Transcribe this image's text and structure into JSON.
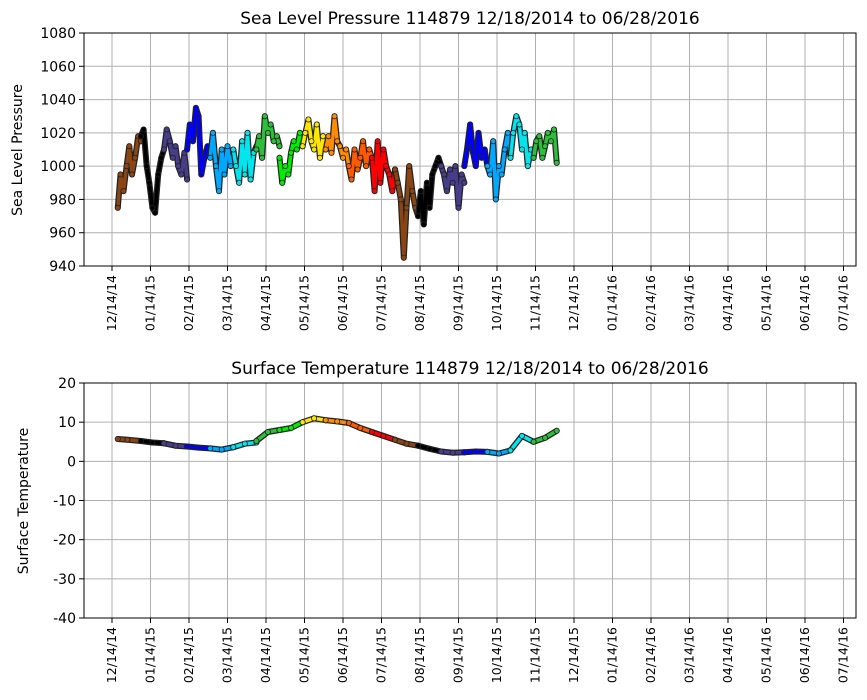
{
  "chart_data": [
    {
      "type": "scatter",
      "title": "Sea Level Pressure 114879  12/18/2014 to 06/28/2016",
      "xlabel": "",
      "ylabel": "Sea Level Pressure",
      "ylim": [
        940,
        1080
      ],
      "yticks": [
        940,
        960,
        980,
        1000,
        1020,
        1040,
        1060,
        1080
      ],
      "grid": true,
      "x_tick_labels": [
        "12/14/14",
        "01/14/15",
        "02/14/15",
        "03/14/15",
        "04/14/15",
        "05/14/15",
        "06/14/15",
        "07/14/15",
        "08/14/15",
        "09/14/15",
        "10/14/15",
        "11/14/15",
        "12/14/15",
        "01/14/16",
        "02/14/16",
        "03/14/16",
        "04/14/16",
        "05/14/16",
        "06/14/16",
        "07/14/16"
      ],
      "x_unit": "months since 12/14/14",
      "segments": [
        {
          "color": "#8B4513",
          "x": [
            0.15,
            0.22,
            0.3,
            0.38,
            0.45,
            0.52,
            0.6,
            0.68,
            0.75
          ],
          "y": [
            975,
            995,
            985,
            1000,
            1012,
            995,
            1005,
            1018,
            1015
          ]
        },
        {
          "color": "#000000",
          "x": [
            0.75,
            0.82,
            0.9,
            0.97,
            1.05,
            1.12,
            1.2,
            1.28,
            1.35
          ],
          "y": [
            1018,
            1022,
            1000,
            990,
            975,
            972,
            995,
            1005,
            1010
          ]
        },
        {
          "color": "#483D8B",
          "x": [
            1.35,
            1.42,
            1.5,
            1.58,
            1.65,
            1.72,
            1.8,
            1.88,
            1.95
          ],
          "y": [
            1010,
            1022,
            1015,
            1005,
            1012,
            1000,
            995,
            1008,
            992
          ]
        },
        {
          "color": "#0000FF",
          "x": [
            1.95,
            2.02,
            2.1,
            2.18,
            2.25,
            2.32,
            2.4,
            2.48,
            2.55
          ],
          "y": [
            1010,
            1025,
            1015,
            1035,
            1030,
            995,
            1005,
            1012,
            1008
          ]
        },
        {
          "color": "#00A8FF",
          "x": [
            2.55,
            2.62,
            2.7,
            2.78,
            2.85,
            2.92,
            3.0,
            3.08,
            3.15
          ],
          "y": [
            1005,
            1020,
            1000,
            985,
            1010,
            995,
            1012,
            1000,
            1008
          ]
        },
        {
          "color": "#00E5EE",
          "x": [
            3.15,
            3.22,
            3.3,
            3.38,
            3.45,
            3.52,
            3.6,
            3.68,
            3.75
          ],
          "y": [
            1010,
            1000,
            990,
            1015,
            995,
            1020,
            992,
            1008,
            1012
          ]
        },
        {
          "color": "#2DBF3A",
          "x": [
            3.75,
            3.82,
            3.9,
            3.97,
            4.05,
            4.12,
            4.2,
            4.28,
            4.35
          ],
          "y": [
            1010,
            1018,
            1005,
            1030,
            1020,
            1025,
            1015,
            1018,
            1012
          ]
        },
        {
          "color": "#00EE00",
          "x": [
            4.35,
            4.42,
            4.5,
            4.58,
            4.65,
            4.72,
            4.8,
            4.88,
            4.95
          ],
          "y": [
            1005,
            990,
            1000,
            995,
            1008,
            1015,
            1010,
            1020,
            1012
          ]
        },
        {
          "color": "#FFE600",
          "x": [
            4.95,
            5.02,
            5.1,
            5.18,
            5.25,
            5.32,
            5.4,
            5.48,
            5.55
          ],
          "y": [
            1012,
            1020,
            1028,
            1015,
            1010,
            1025,
            1005,
            1018,
            1010
          ]
        },
        {
          "color": "#FF8C00",
          "x": [
            5.55,
            5.62,
            5.7,
            5.78,
            5.85,
            5.92,
            6.0,
            6.08,
            6.15
          ],
          "y": [
            1010,
            1018,
            1008,
            1030,
            1015,
            1012,
            1005,
            1010,
            1000
          ]
        },
        {
          "color": "#FF5A00",
          "x": [
            6.15,
            6.22,
            6.3,
            6.38,
            6.45,
            6.52,
            6.6,
            6.68,
            6.75
          ],
          "y": [
            1000,
            992,
            1010,
            998,
            1005,
            1015,
            1000,
            1010,
            1005
          ]
        },
        {
          "color": "#FF0000",
          "x": [
            6.75,
            6.82,
            6.9,
            6.97,
            7.05,
            7.12,
            7.2,
            7.28,
            7.35
          ],
          "y": [
            1005,
            985,
            1015,
            990,
            1010,
            1000,
            995,
            985,
            998
          ]
        },
        {
          "color": "#8B4513",
          "x": [
            7.35,
            7.42,
            7.5,
            7.58,
            7.65,
            7.72,
            7.8,
            7.88,
            7.95
          ],
          "y": [
            998,
            990,
            980,
            945,
            975,
            1000,
            985,
            975,
            970
          ]
        },
        {
          "color": "#000000",
          "x": [
            7.95,
            8.02,
            8.1,
            8.18,
            8.25,
            8.32,
            8.4,
            8.48,
            8.55
          ],
          "y": [
            970,
            985,
            965,
            990,
            975,
            995,
            1000,
            1005,
            1000
          ]
        },
        {
          "color": "#483D8B",
          "x": [
            8.55,
            8.62,
            8.7,
            8.78,
            8.85,
            8.92,
            9.0,
            9.08,
            9.15
          ],
          "y": [
            1000,
            995,
            985,
            998,
            990,
            1000,
            975,
            995,
            990
          ]
        },
        {
          "color": "#0000FF",
          "x": [
            9.15,
            9.22,
            9.3,
            9.38,
            9.45,
            9.52,
            9.6,
            9.68,
            9.75
          ],
          "y": [
            1000,
            1010,
            1025,
            1008,
            1000,
            1020,
            1005,
            1010,
            1000
          ]
        },
        {
          "color": "#00A8FF",
          "x": [
            9.75,
            9.82,
            9.9,
            9.97,
            10.05,
            10.12,
            10.2,
            10.28,
            10.35
          ],
          "y": [
            1000,
            995,
            1015,
            980,
            1000,
            995,
            1010,
            1020,
            1005
          ]
        },
        {
          "color": "#00E5EE",
          "x": [
            10.35,
            10.42,
            10.5,
            10.58,
            10.65,
            10.72,
            10.8,
            10.88,
            10.95
          ],
          "y": [
            1005,
            1020,
            1030,
            1025,
            1010,
            1020,
            1000,
            1010,
            1005
          ]
        },
        {
          "color": "#2DBF3A",
          "x": [
            10.95,
            11.02,
            11.1,
            11.18,
            11.25,
            11.32,
            11.4,
            11.48,
            11.55
          ],
          "y": [
            1005,
            1015,
            1018,
            1005,
            1012,
            1020,
            1015,
            1022,
            1002
          ]
        }
      ]
    },
    {
      "type": "scatter",
      "title": "Surface Temperature 114879  12/18/2014 to 06/28/2016",
      "xlabel": "",
      "ylabel": "Surface Temperature",
      "ylim": [
        -40,
        20
      ],
      "yticks": [
        -40,
        -30,
        -20,
        -10,
        0,
        10,
        20
      ],
      "grid": true,
      "x_tick_labels": [
        "12/14/14",
        "01/14/15",
        "02/14/15",
        "03/14/15",
        "04/14/15",
        "05/14/15",
        "06/14/15",
        "07/14/15",
        "08/14/15",
        "09/14/15",
        "10/14/15",
        "11/14/15",
        "12/14/15",
        "01/14/16",
        "02/14/16",
        "03/14/16",
        "04/14/16",
        "05/14/16",
        "06/14/16",
        "07/14/16"
      ],
      "x_unit": "months since 12/14/14",
      "segments": [
        {
          "color": "#8B4513",
          "x": [
            0.15,
            0.4,
            0.75
          ],
          "y": [
            5.7,
            5.5,
            5.2
          ]
        },
        {
          "color": "#000000",
          "x": [
            0.75,
            1.05,
            1.35
          ],
          "y": [
            5.2,
            4.8,
            4.6
          ]
        },
        {
          "color": "#483D8B",
          "x": [
            1.35,
            1.65,
            1.95
          ],
          "y": [
            4.6,
            4.0,
            3.8
          ]
        },
        {
          "color": "#0000FF",
          "x": [
            1.95,
            2.25,
            2.55
          ],
          "y": [
            3.8,
            3.5,
            3.3
          ]
        },
        {
          "color": "#00A8FF",
          "x": [
            2.55,
            2.85,
            3.15
          ],
          "y": [
            3.3,
            3.0,
            3.6
          ]
        },
        {
          "color": "#00E5EE",
          "x": [
            3.15,
            3.45,
            3.75
          ],
          "y": [
            3.6,
            4.5,
            4.8
          ]
        },
        {
          "color": "#2DBF3A",
          "x": [
            3.75,
            4.05,
            4.35
          ],
          "y": [
            5.2,
            7.5,
            8.0
          ]
        },
        {
          "color": "#00EE00",
          "x": [
            4.35,
            4.65,
            4.95
          ],
          "y": [
            8.0,
            8.5,
            10.0
          ]
        },
        {
          "color": "#FFE600",
          "x": [
            4.95,
            5.25,
            5.55
          ],
          "y": [
            10.0,
            11.0,
            10.5
          ]
        },
        {
          "color": "#FF8C00",
          "x": [
            5.55,
            5.85,
            6.15
          ],
          "y": [
            10.5,
            10.2,
            9.8
          ]
        },
        {
          "color": "#FF5A00",
          "x": [
            6.15,
            6.45,
            6.75
          ],
          "y": [
            9.8,
            8.5,
            7.5
          ]
        },
        {
          "color": "#FF0000",
          "x": [
            6.75,
            7.05,
            7.35
          ],
          "y": [
            7.5,
            6.5,
            5.5
          ]
        },
        {
          "color": "#8B4513",
          "x": [
            7.35,
            7.65,
            7.95
          ],
          "y": [
            5.5,
            4.5,
            4.0
          ]
        },
        {
          "color": "#000000",
          "x": [
            7.95,
            8.25,
            8.55
          ],
          "y": [
            4.0,
            3.2,
            2.5
          ]
        },
        {
          "color": "#483D8B",
          "x": [
            8.55,
            8.85,
            9.15
          ],
          "y": [
            2.5,
            2.2,
            2.3
          ]
        },
        {
          "color": "#0000FF",
          "x": [
            9.15,
            9.45,
            9.75
          ],
          "y": [
            2.3,
            2.5,
            2.4
          ]
        },
        {
          "color": "#00A8FF",
          "x": [
            9.75,
            10.05,
            10.35
          ],
          "y": [
            2.4,
            2.0,
            2.8
          ]
        },
        {
          "color": "#00E5EE",
          "x": [
            10.35,
            10.65,
            10.95
          ],
          "y": [
            2.8,
            6.5,
            5.0
          ]
        },
        {
          "color": "#2DBF3A",
          "x": [
            10.95,
            11.25,
            11.55
          ],
          "y": [
            5.0,
            6.0,
            7.8
          ]
        }
      ]
    }
  ]
}
